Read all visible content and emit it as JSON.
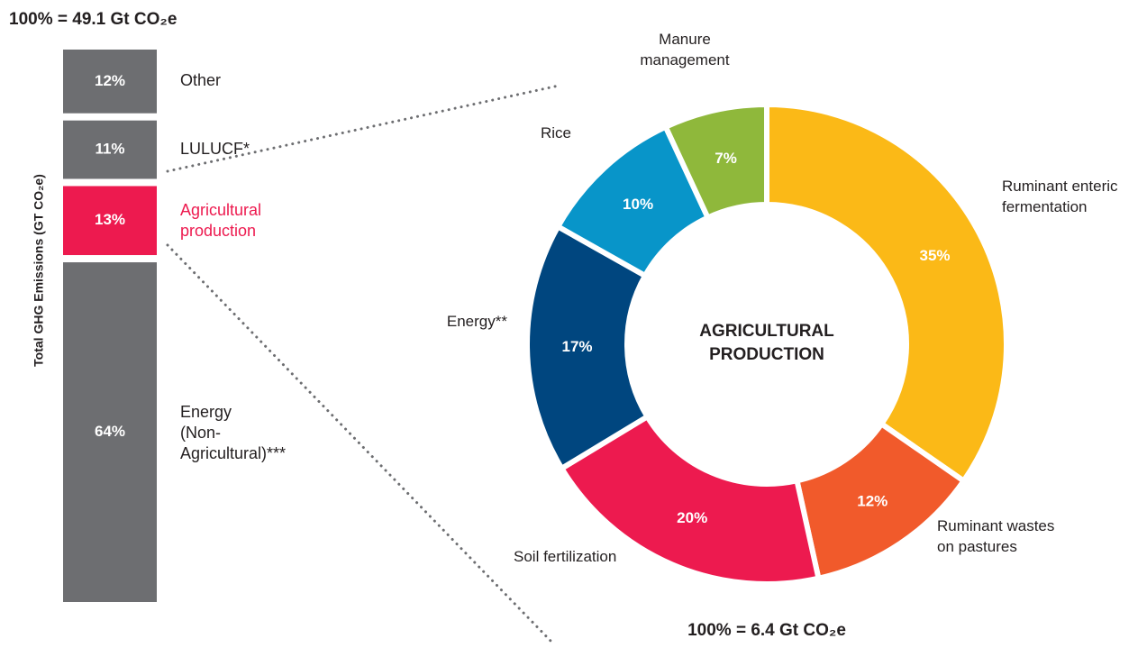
{
  "chart_data": [
    {
      "type": "bar",
      "stacked": true,
      "title": "100% = 49.1 Gt CO₂e",
      "ylabel": "Total GHG Emissions (GT CO₂e)",
      "categories": [
        null
      ],
      "series": [
        {
          "name": "Energy (Non-Agricultural)***",
          "color": "#6d6e71",
          "label_color": "#231f20",
          "values": [
            64
          ],
          "value_labels": [
            "64%"
          ]
        },
        {
          "name": "Agricultural production",
          "color": "#ed1a4f",
          "label_color": "#ed1a4f",
          "values": [
            13
          ],
          "value_labels": [
            "13%"
          ]
        },
        {
          "name": "LULUCF*",
          "color": "#6d6e71",
          "label_color": "#231f20",
          "values": [
            11
          ],
          "value_labels": [
            "11%"
          ]
        },
        {
          "name": "Other",
          "color": "#6d6e71",
          "label_color": "#231f20",
          "values": [
            12
          ],
          "value_labels": [
            "12%"
          ]
        }
      ]
    },
    {
      "type": "pie",
      "donut": true,
      "title": "100% = 6.4 Gt CO₂e",
      "center_label": "AGRICULTURAL PRODUCTION",
      "categories": [
        "Ruminant enteric fermentation",
        "Ruminant wastes on pastures",
        "Soil fertilization",
        "Energy**",
        "Rice",
        "Manure management"
      ],
      "values": [
        35,
        12,
        20,
        17,
        10,
        7
      ],
      "value_labels": [
        "35%",
        "12%",
        "20%",
        "17%",
        "10%",
        "7%"
      ],
      "colors": [
        "#fbb917",
        "#f15a2b",
        "#ed1a4f",
        "#00467f",
        "#0895c9",
        "#8fb83b"
      ]
    }
  ]
}
